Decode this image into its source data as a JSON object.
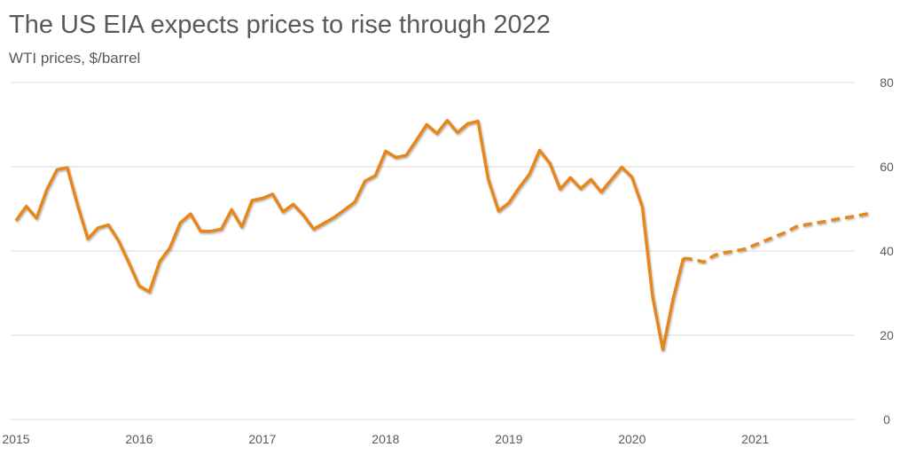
{
  "chart_data": {
    "type": "line",
    "title": "The US EIA expects prices to rise through 2022",
    "subtitle": "WTI prices, $/barrel",
    "xlabel": "",
    "ylabel": "",
    "x_start": "2015-01",
    "x_step": "month",
    "xticks": [
      "2015",
      "2016",
      "2017",
      "2018",
      "2019",
      "2020",
      "2021"
    ],
    "yticks": [
      0,
      20,
      40,
      60,
      80
    ],
    "ylim": [
      0,
      80
    ],
    "y_axis_side": "right",
    "grid": true,
    "line_color": "#E6861C",
    "series": [
      {
        "style": "solid",
        "start": "2015-01",
        "values": [
          47.2,
          50.6,
          47.8,
          54.5,
          59.3,
          59.8,
          50.9,
          42.9,
          45.5,
          46.2,
          42.4,
          37.2,
          31.7,
          30.3,
          37.5,
          40.8,
          46.7,
          48.8,
          44.7,
          44.7,
          45.2,
          49.8,
          45.7,
          52.0,
          52.5,
          53.5,
          49.3,
          51.1,
          48.5,
          45.2,
          46.6,
          48.0,
          49.8,
          51.6,
          56.6,
          57.9,
          63.7,
          62.2,
          62.7,
          66.3,
          70.0,
          67.9,
          71.0,
          68.1,
          70.2,
          70.8,
          57.0,
          49.5,
          51.4,
          55.0,
          58.2,
          63.9,
          60.8,
          54.7,
          57.4,
          54.8,
          57.0,
          54.0,
          57.0,
          59.9,
          57.5,
          50.5,
          29.2,
          16.6,
          28.6,
          38.3
        ]
      },
      {
        "style": "dashed",
        "start": "2020-06",
        "values": [
          38.3,
          38.0,
          37.4,
          39.0,
          39.6,
          40.0,
          40.5,
          41.5,
          42.5,
          43.5,
          44.5,
          45.8,
          46.3,
          46.7,
          47.1,
          47.6,
          48.0,
          48.4,
          48.9
        ]
      }
    ]
  }
}
